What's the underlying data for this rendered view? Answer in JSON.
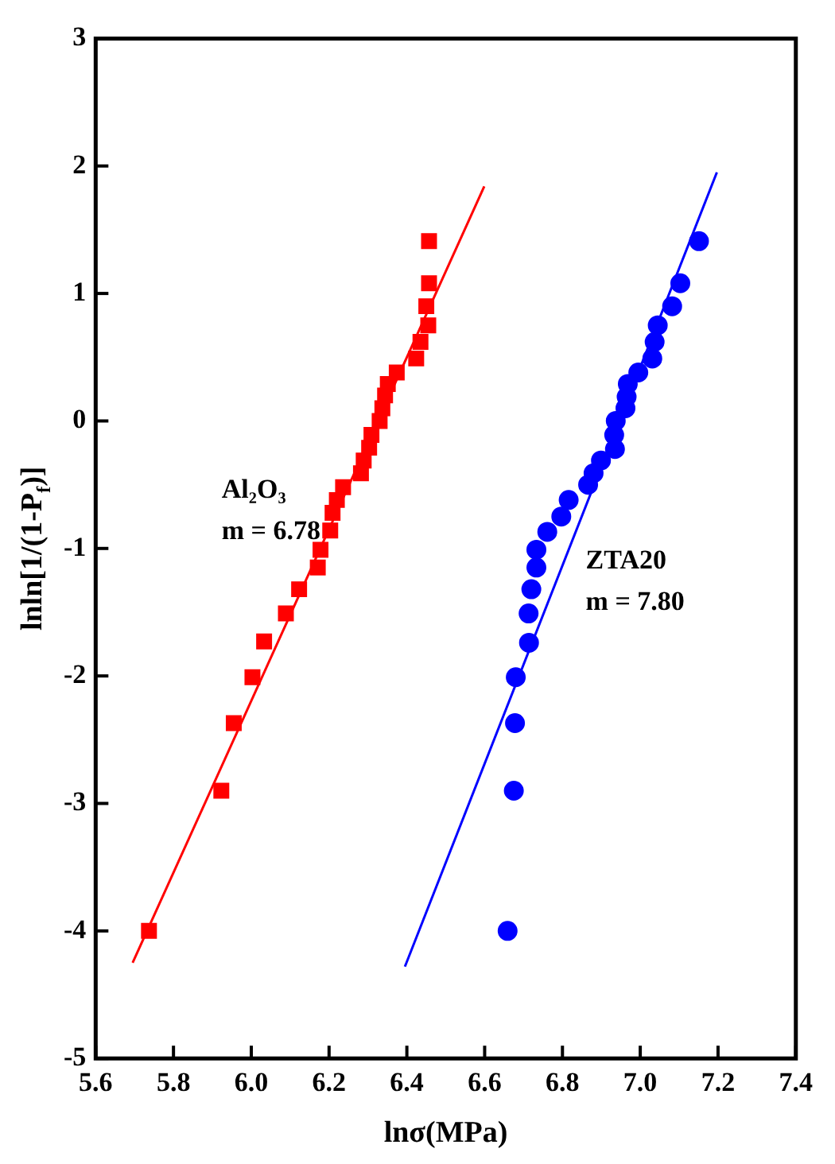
{
  "chart_data": {
    "type": "scatter",
    "xlabel": "lnσ(MPa)",
    "ylabel": "lnln[1/(1-P$_{f}$)]",
    "xlim": [
      5.6,
      7.4
    ],
    "xticks": [
      5.6,
      5.8,
      {
        "value": 6,
        "label": "6.0"
      },
      6.2,
      6.4,
      6.6,
      6.8,
      {
        "value": 7,
        "label": "7.0"
      },
      7.2,
      7.4
    ],
    "ylim": [
      -5,
      3
    ],
    "yticks": [
      -5,
      -4,
      -3,
      -2,
      -1,
      0,
      1,
      2,
      3
    ],
    "grid": false,
    "legend": false,
    "annotations": [
      "m = 6.78",
      "m = 7.80"
    ],
    "series": [
      {
        "name": "Al₂O₃",
        "color": "#ff0000",
        "marker": "square",
        "x": [
          6.457,
          6.457,
          6.45,
          6.455,
          6.435,
          6.424,
          6.374,
          6.351,
          6.344,
          6.337,
          6.33,
          6.309,
          6.303,
          6.289,
          6.282,
          6.236,
          6.22,
          6.209,
          6.203,
          6.178,
          6.171,
          6.123,
          6.089,
          6.033,
          6.003,
          5.955,
          5.923,
          5.737
        ],
        "values": [
          1.41,
          1.08,
          0.9,
          0.75,
          0.62,
          0.49,
          0.38,
          0.29,
          0.2,
          0.1,
          0.0,
          -0.11,
          -0.21,
          -0.31,
          -0.41,
          -0.52,
          -0.62,
          -0.72,
          -0.86,
          -1.01,
          -1.15,
          -1.32,
          -1.51,
          -1.73,
          -2.01,
          -2.37,
          -2.9,
          -4.0
        ]
      },
      {
        "name": "ZTA20",
        "color": "#0000ff",
        "marker": "circle",
        "x": [
          7.151,
          7.103,
          7.082,
          7.045,
          7.037,
          7.031,
          6.995,
          6.968,
          6.965,
          6.962,
          6.937,
          6.933,
          6.935,
          6.899,
          6.88,
          6.866,
          6.816,
          6.797,
          6.761,
          6.733,
          6.733,
          6.72,
          6.713,
          6.714,
          6.68,
          6.678,
          6.675,
          6.659
        ],
        "values": [
          1.41,
          1.08,
          0.9,
          0.75,
          0.62,
          0.49,
          0.38,
          0.29,
          0.19,
          0.1,
          0.0,
          -0.11,
          -0.22,
          -0.31,
          -0.41,
          -0.5,
          -0.62,
          -0.75,
          -0.87,
          -1.01,
          -1.15,
          -1.32,
          -1.51,
          -1.74,
          -2.01,
          -2.37,
          -2.9,
          -4.0
        ]
      },
      {
        "type": "line",
        "color": "#ff0000",
        "marker": "none",
        "line_style": "solid",
        "x": [
          5.695,
          6.599
        ],
        "values": [
          -4.25,
          1.84
        ]
      },
      {
        "type": "line",
        "color": "#0000ff",
        "marker": "none",
        "line_style": "solid",
        "x": [
          6.395,
          7.197
        ],
        "values": [
          -4.28,
          1.95
        ]
      }
    ]
  }
}
